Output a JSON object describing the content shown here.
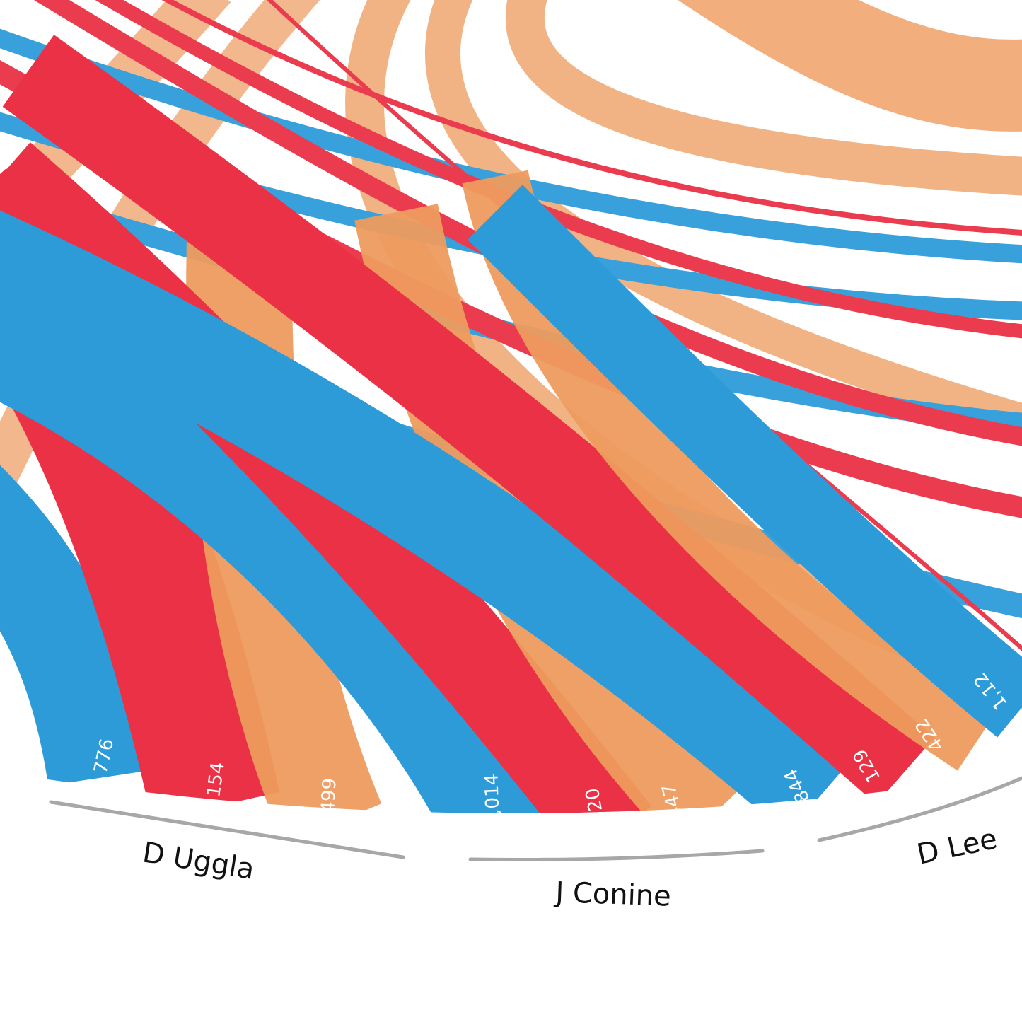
{
  "colors": {
    "blue": "#2e9bd9",
    "red": "#ea3145",
    "orange": "#ee9b5e",
    "bracket": "#a7a7a7"
  },
  "chart_data": {
    "type": "chord",
    "title": "",
    "groups": [
      {
        "name": "D Uggla",
        "values": [
          {
            "color": "blue",
            "label": "776",
            "value": 776
          },
          {
            "color": "red",
            "label": "154",
            "value": 154
          },
          {
            "color": "orange",
            "label": "499",
            "value": 499
          }
        ]
      },
      {
        "name": "J Conine",
        "values": [
          {
            "color": "blue",
            "label": "1,014",
            "value": 1014
          },
          {
            "color": "red",
            "label": "120",
            "value": 120
          },
          {
            "color": "orange",
            "label": "447",
            "value": 447
          }
        ]
      },
      {
        "name": "D Lee",
        "values": [
          {
            "color": "blue",
            "label": "844",
            "value": 844
          },
          {
            "color": "red",
            "label": "129",
            "value": 129
          },
          {
            "color": "orange",
            "label": "422",
            "value": 422
          },
          {
            "color": "blue",
            "label": "1,12",
            "value": null
          }
        ]
      }
    ]
  }
}
